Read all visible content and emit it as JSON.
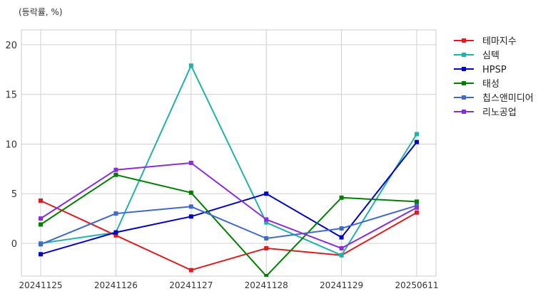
{
  "chart_data": {
    "type": "line",
    "unit_label": "(등락률, %)",
    "x": [
      "20241125",
      "20241126",
      "20241127",
      "20241128",
      "20241129",
      "20250611"
    ],
    "ylim": [
      -3.3,
      21.5
    ],
    "yticks": [
      0,
      5,
      10,
      15,
      20
    ],
    "grid": true,
    "legend_position": "right",
    "series": [
      {
        "name": "테마지수",
        "color": "#e31a1c",
        "values": [
          4.3,
          0.8,
          -2.7,
          -0.5,
          -1.2,
          3.1
        ]
      },
      {
        "name": "심텍",
        "color": "#20b2aa",
        "values": [
          0.0,
          1.1,
          17.9,
          2.1,
          -1.2,
          11.0
        ]
      },
      {
        "name": "HPSP",
        "color": "#0000cd",
        "values": [
          -1.1,
          1.1,
          2.7,
          5.0,
          0.6,
          10.2
        ]
      },
      {
        "name": "태성",
        "color": "#008000",
        "values": [
          1.9,
          6.9,
          5.1,
          -3.3,
          4.6,
          4.2
        ]
      },
      {
        "name": "칩스앤미디어",
        "color": "#4169cd",
        "values": [
          -0.1,
          3.0,
          3.7,
          0.5,
          1.5,
          3.8
        ]
      },
      {
        "name": "리노공업",
        "color": "#8a2be2",
        "values": [
          2.5,
          7.4,
          8.1,
          2.4,
          -0.5,
          3.6
        ]
      }
    ]
  }
}
